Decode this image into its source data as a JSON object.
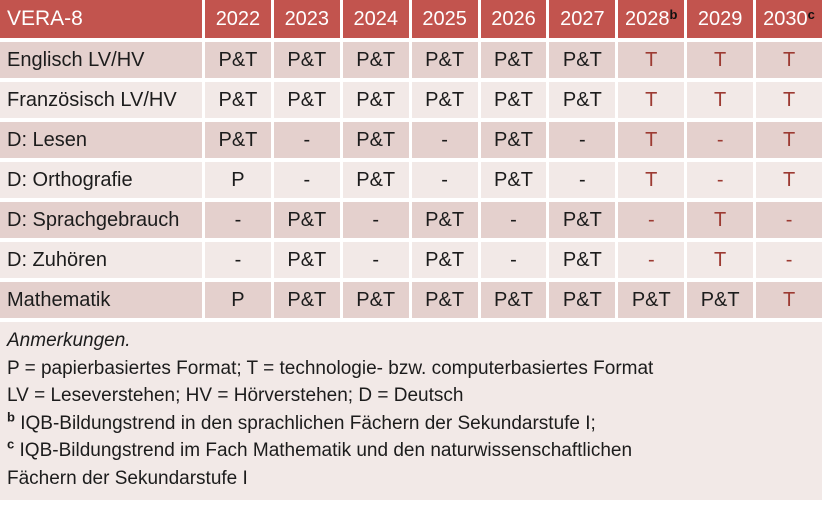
{
  "table": {
    "header": {
      "title": "VERA-8",
      "years": [
        {
          "label": "2022",
          "sup": ""
        },
        {
          "label": "2023",
          "sup": ""
        },
        {
          "label": "2024",
          "sup": ""
        },
        {
          "label": "2025",
          "sup": ""
        },
        {
          "label": "2026",
          "sup": ""
        },
        {
          "label": "2027",
          "sup": ""
        },
        {
          "label": "2028",
          "sup": "b"
        },
        {
          "label": "2029",
          "sup": ""
        },
        {
          "label": "2030",
          "sup": "c"
        }
      ]
    },
    "rows": [
      {
        "label": "Englisch LV/HV",
        "values": [
          "P&T",
          "P&T",
          "P&T",
          "P&T",
          "P&T",
          "P&T",
          "T",
          "T",
          "T"
        ]
      },
      {
        "label": "Französisch LV/HV",
        "values": [
          "P&T",
          "P&T",
          "P&T",
          "P&T",
          "P&T",
          "P&T",
          "T",
          "T",
          "T"
        ]
      },
      {
        "label": "D: Lesen",
        "values": [
          "P&T",
          "-",
          "P&T",
          "-",
          "P&T",
          "-",
          "T",
          "-",
          "T"
        ]
      },
      {
        "label": "D: Orthografie",
        "values": [
          "P",
          "-",
          "P&T",
          "-",
          "P&T",
          "-",
          "T",
          "-",
          "T"
        ]
      },
      {
        "label": "D: Sprachgebrauch",
        "values": [
          "-",
          "P&T",
          "-",
          "P&T",
          "-",
          "P&T",
          "-",
          "T",
          "-"
        ]
      },
      {
        "label": "D: Zuhören",
        "values": [
          "-",
          "P&T",
          "-",
          "P&T",
          "-",
          "P&T",
          "-",
          "T",
          "-"
        ]
      },
      {
        "label": "Mathematik",
        "values": [
          "P",
          "P&T",
          "P&T",
          "P&T",
          "P&T",
          "P&T",
          "P&T",
          "P&T",
          "T"
        ]
      }
    ]
  },
  "notes": {
    "heading": "Anmerkungen.",
    "formats": "P = papierbasiertes Format; T = technologie- bzw. computerbasiertes Format",
    "abbreviations": "LV = Leseverstehen; HV = Hörverstehen; D = Deutsch",
    "note_b_sup": "b",
    "note_b_text": "IQB-Bildungstrend in den sprachlichen Fächern der Sekundarstufe I;",
    "note_c_sup": "c",
    "note_c_line1": "IQB-Bildungstrend im Fach Mathematik und den naturwissenschaftlichen",
    "note_c_line2": "Fächern der Sekundarstufe I"
  },
  "colors": {
    "header_bg": "#C2544E",
    "band_dark": "#E4D0CD",
    "band_light": "#F2E9E7",
    "notes_bg": "#F2E9E7",
    "value_red": "#9C3A32",
    "header_text": "#FFFFFF",
    "body_text": "#1C1C1C"
  }
}
